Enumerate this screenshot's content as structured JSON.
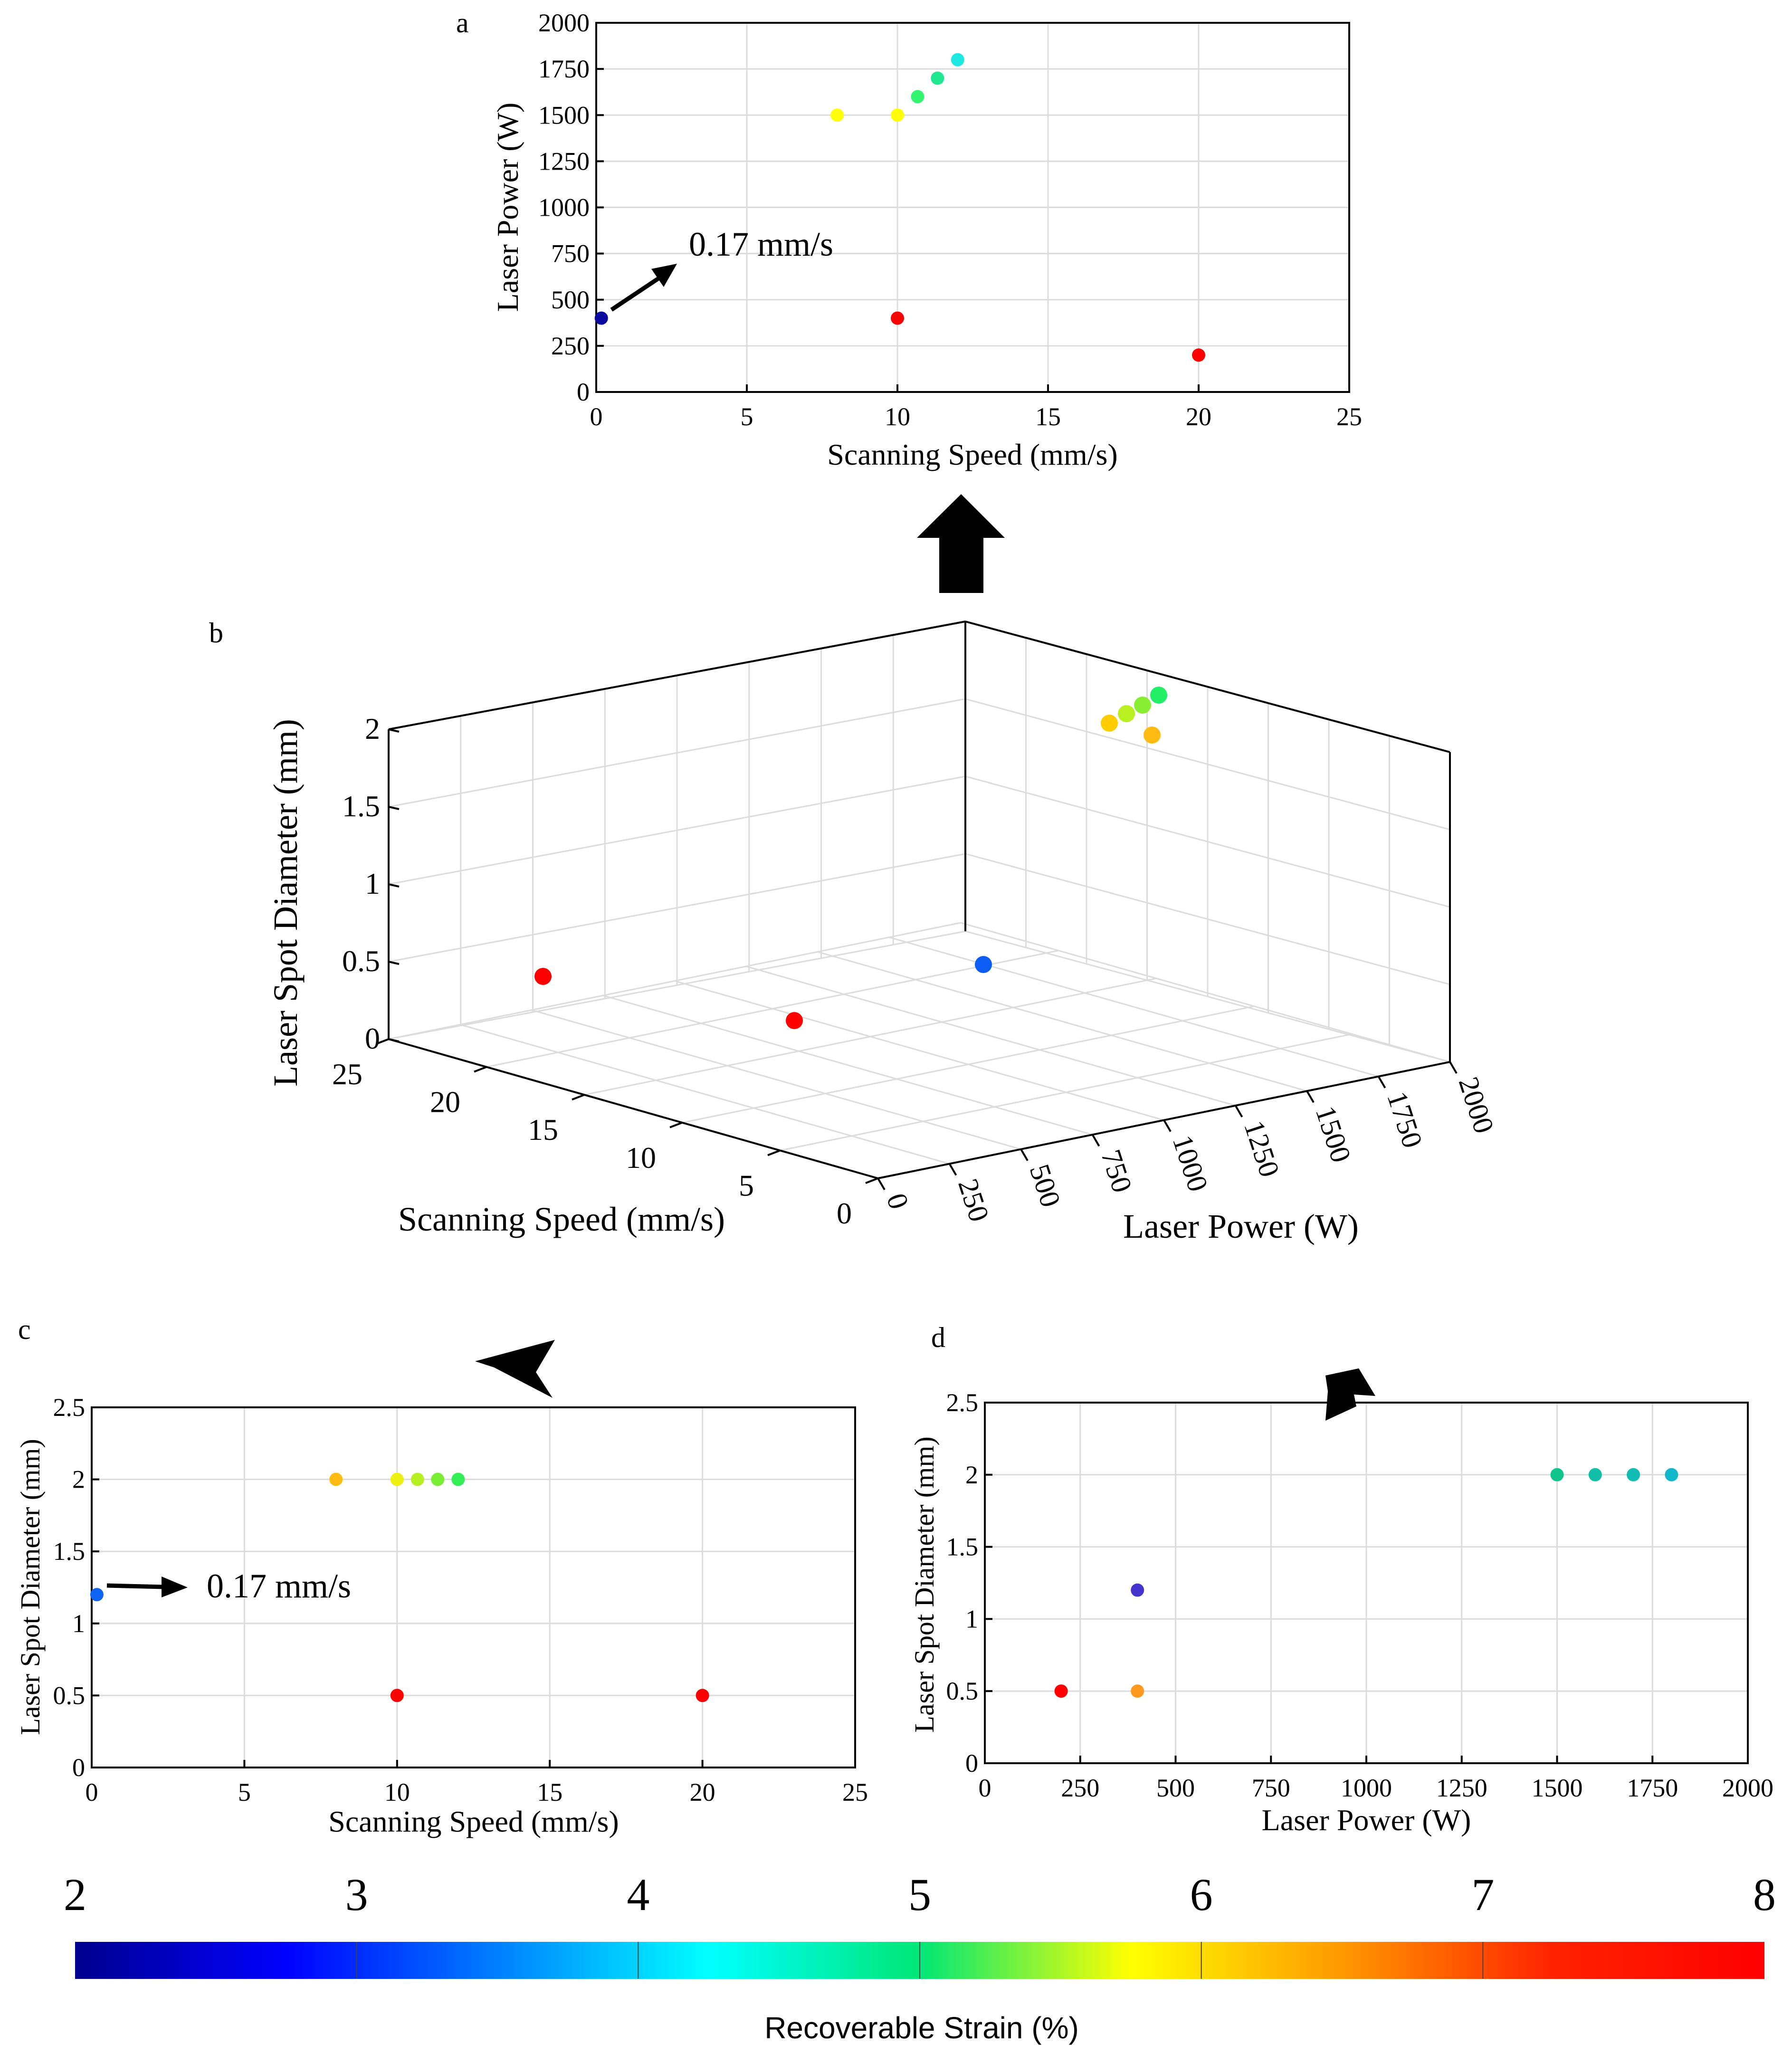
{
  "panels": {
    "a": {
      "letter": "a",
      "annotation": "0.17 mm/s"
    },
    "b": {
      "letter": "b"
    },
    "c": {
      "letter": "c",
      "annotation": "0.17 mm/s"
    },
    "d": {
      "letter": "d"
    }
  },
  "colorbar": {
    "label": "Recoverable Strain (%)",
    "ticks": [
      "2",
      "3",
      "4",
      "5",
      "6",
      "7",
      "8"
    ],
    "range": [
      2,
      8
    ],
    "colormap": "jet"
  },
  "chart_data": [
    {
      "id": "a",
      "type": "scatter",
      "xlabel": "Scanning Speed (mm/s)",
      "ylabel": "Laser Power (W)",
      "xlim": [
        0,
        25
      ],
      "ylim": [
        0,
        2000
      ],
      "xticks": [
        "0",
        "5",
        "10",
        "15",
        "20",
        "25"
      ],
      "yticks": [
        "0",
        "250",
        "500",
        "750",
        "1000",
        "1250",
        "1500",
        "1750",
        "2000"
      ],
      "grid": true,
      "points": [
        {
          "x": 0.17,
          "y": 400,
          "color": "#0a0a9c"
        },
        {
          "x": 8,
          "y": 1500,
          "color": "#ffff00"
        },
        {
          "x": 10,
          "y": 1500,
          "color": "#ffff00"
        },
        {
          "x": 10.67,
          "y": 1600,
          "color": "#33f570"
        },
        {
          "x": 11.33,
          "y": 1700,
          "color": "#20e890"
        },
        {
          "x": 12,
          "y": 1800,
          "color": "#1fe8e0"
        },
        {
          "x": 10,
          "y": 400,
          "color": "#ff0000"
        },
        {
          "x": 20,
          "y": 200,
          "color": "#ff0000"
        }
      ]
    },
    {
      "id": "b",
      "type": "scatter",
      "xlabel": "Scanning Speed (mm/s)",
      "ylabel": "Laser Power (W)",
      "zlabel": "Laser Spot Diameter (mm)",
      "xlim": [
        0,
        25
      ],
      "ylim": [
        0,
        2000
      ],
      "zlim": [
        0,
        2
      ],
      "xticks": [
        "0",
        "5",
        "10",
        "15",
        "20",
        "25"
      ],
      "yticks": [
        "0",
        "250",
        "500",
        "750",
        "1000",
        "1250",
        "1500",
        "1750",
        "2000"
      ],
      "zticks": [
        "0",
        "0.5",
        "1",
        "1.5",
        "2"
      ],
      "grid": true,
      "points": [
        {
          "color": "#ffcc00"
        },
        {
          "color": "#b8f020"
        },
        {
          "color": "#88ee33"
        },
        {
          "color": "#22ee66"
        },
        {
          "color": "#ffbb11"
        },
        {
          "color": "#ff0000"
        },
        {
          "color": "#ff0000"
        },
        {
          "color": "#0d5cf5"
        }
      ]
    },
    {
      "id": "c",
      "type": "scatter",
      "xlabel": "Scanning Speed (mm/s)",
      "ylabel": "Laser Spot Diameter (mm)",
      "xlim": [
        0,
        25
      ],
      "ylim": [
        0,
        2.5
      ],
      "xticks": [
        "0",
        "5",
        "10",
        "15",
        "20",
        "25"
      ],
      "yticks": [
        "0",
        "0.5",
        "1",
        "1.5",
        "2",
        "2.5"
      ],
      "grid": true,
      "points": [
        {
          "x": 0.17,
          "y": 1.2,
          "color": "#0f63f2"
        },
        {
          "x": 8,
          "y": 2,
          "color": "#ffbb11"
        },
        {
          "x": 10,
          "y": 2,
          "color": "#eef011"
        },
        {
          "x": 10.67,
          "y": 2,
          "color": "#b6ef22"
        },
        {
          "x": 11.33,
          "y": 2,
          "color": "#7aee33"
        },
        {
          "x": 12,
          "y": 2,
          "color": "#33ee55"
        },
        {
          "x": 10,
          "y": 0.5,
          "color": "#ff0000"
        },
        {
          "x": 20,
          "y": 0.5,
          "color": "#ff0000"
        }
      ]
    },
    {
      "id": "d",
      "type": "scatter",
      "xlabel": "Laser Power (W)",
      "ylabel": "Laser Spot Diameter (mm)",
      "xlim": [
        0,
        2000
      ],
      "ylim": [
        0,
        2.5
      ],
      "xticks": [
        "0",
        "250",
        "500",
        "750",
        "1000",
        "1250",
        "1500",
        "1750",
        "2000"
      ],
      "yticks": [
        "0",
        "0.5",
        "1",
        "1.5",
        "2",
        "2.5"
      ],
      "grid": true,
      "points": [
        {
          "x": 200,
          "y": 0.5,
          "color": "#ff0000"
        },
        {
          "x": 400,
          "y": 0.5,
          "color": "#ff9920"
        },
        {
          "x": 400,
          "y": 1.2,
          "color": "#4433cc"
        },
        {
          "x": 1500,
          "y": 2,
          "color": "#11c48a"
        },
        {
          "x": 1600,
          "y": 2,
          "color": "#11bfa8"
        },
        {
          "x": 1700,
          "y": 2,
          "color": "#11bcb4"
        },
        {
          "x": 1800,
          "y": 2,
          "color": "#11b8cc"
        }
      ]
    }
  ]
}
